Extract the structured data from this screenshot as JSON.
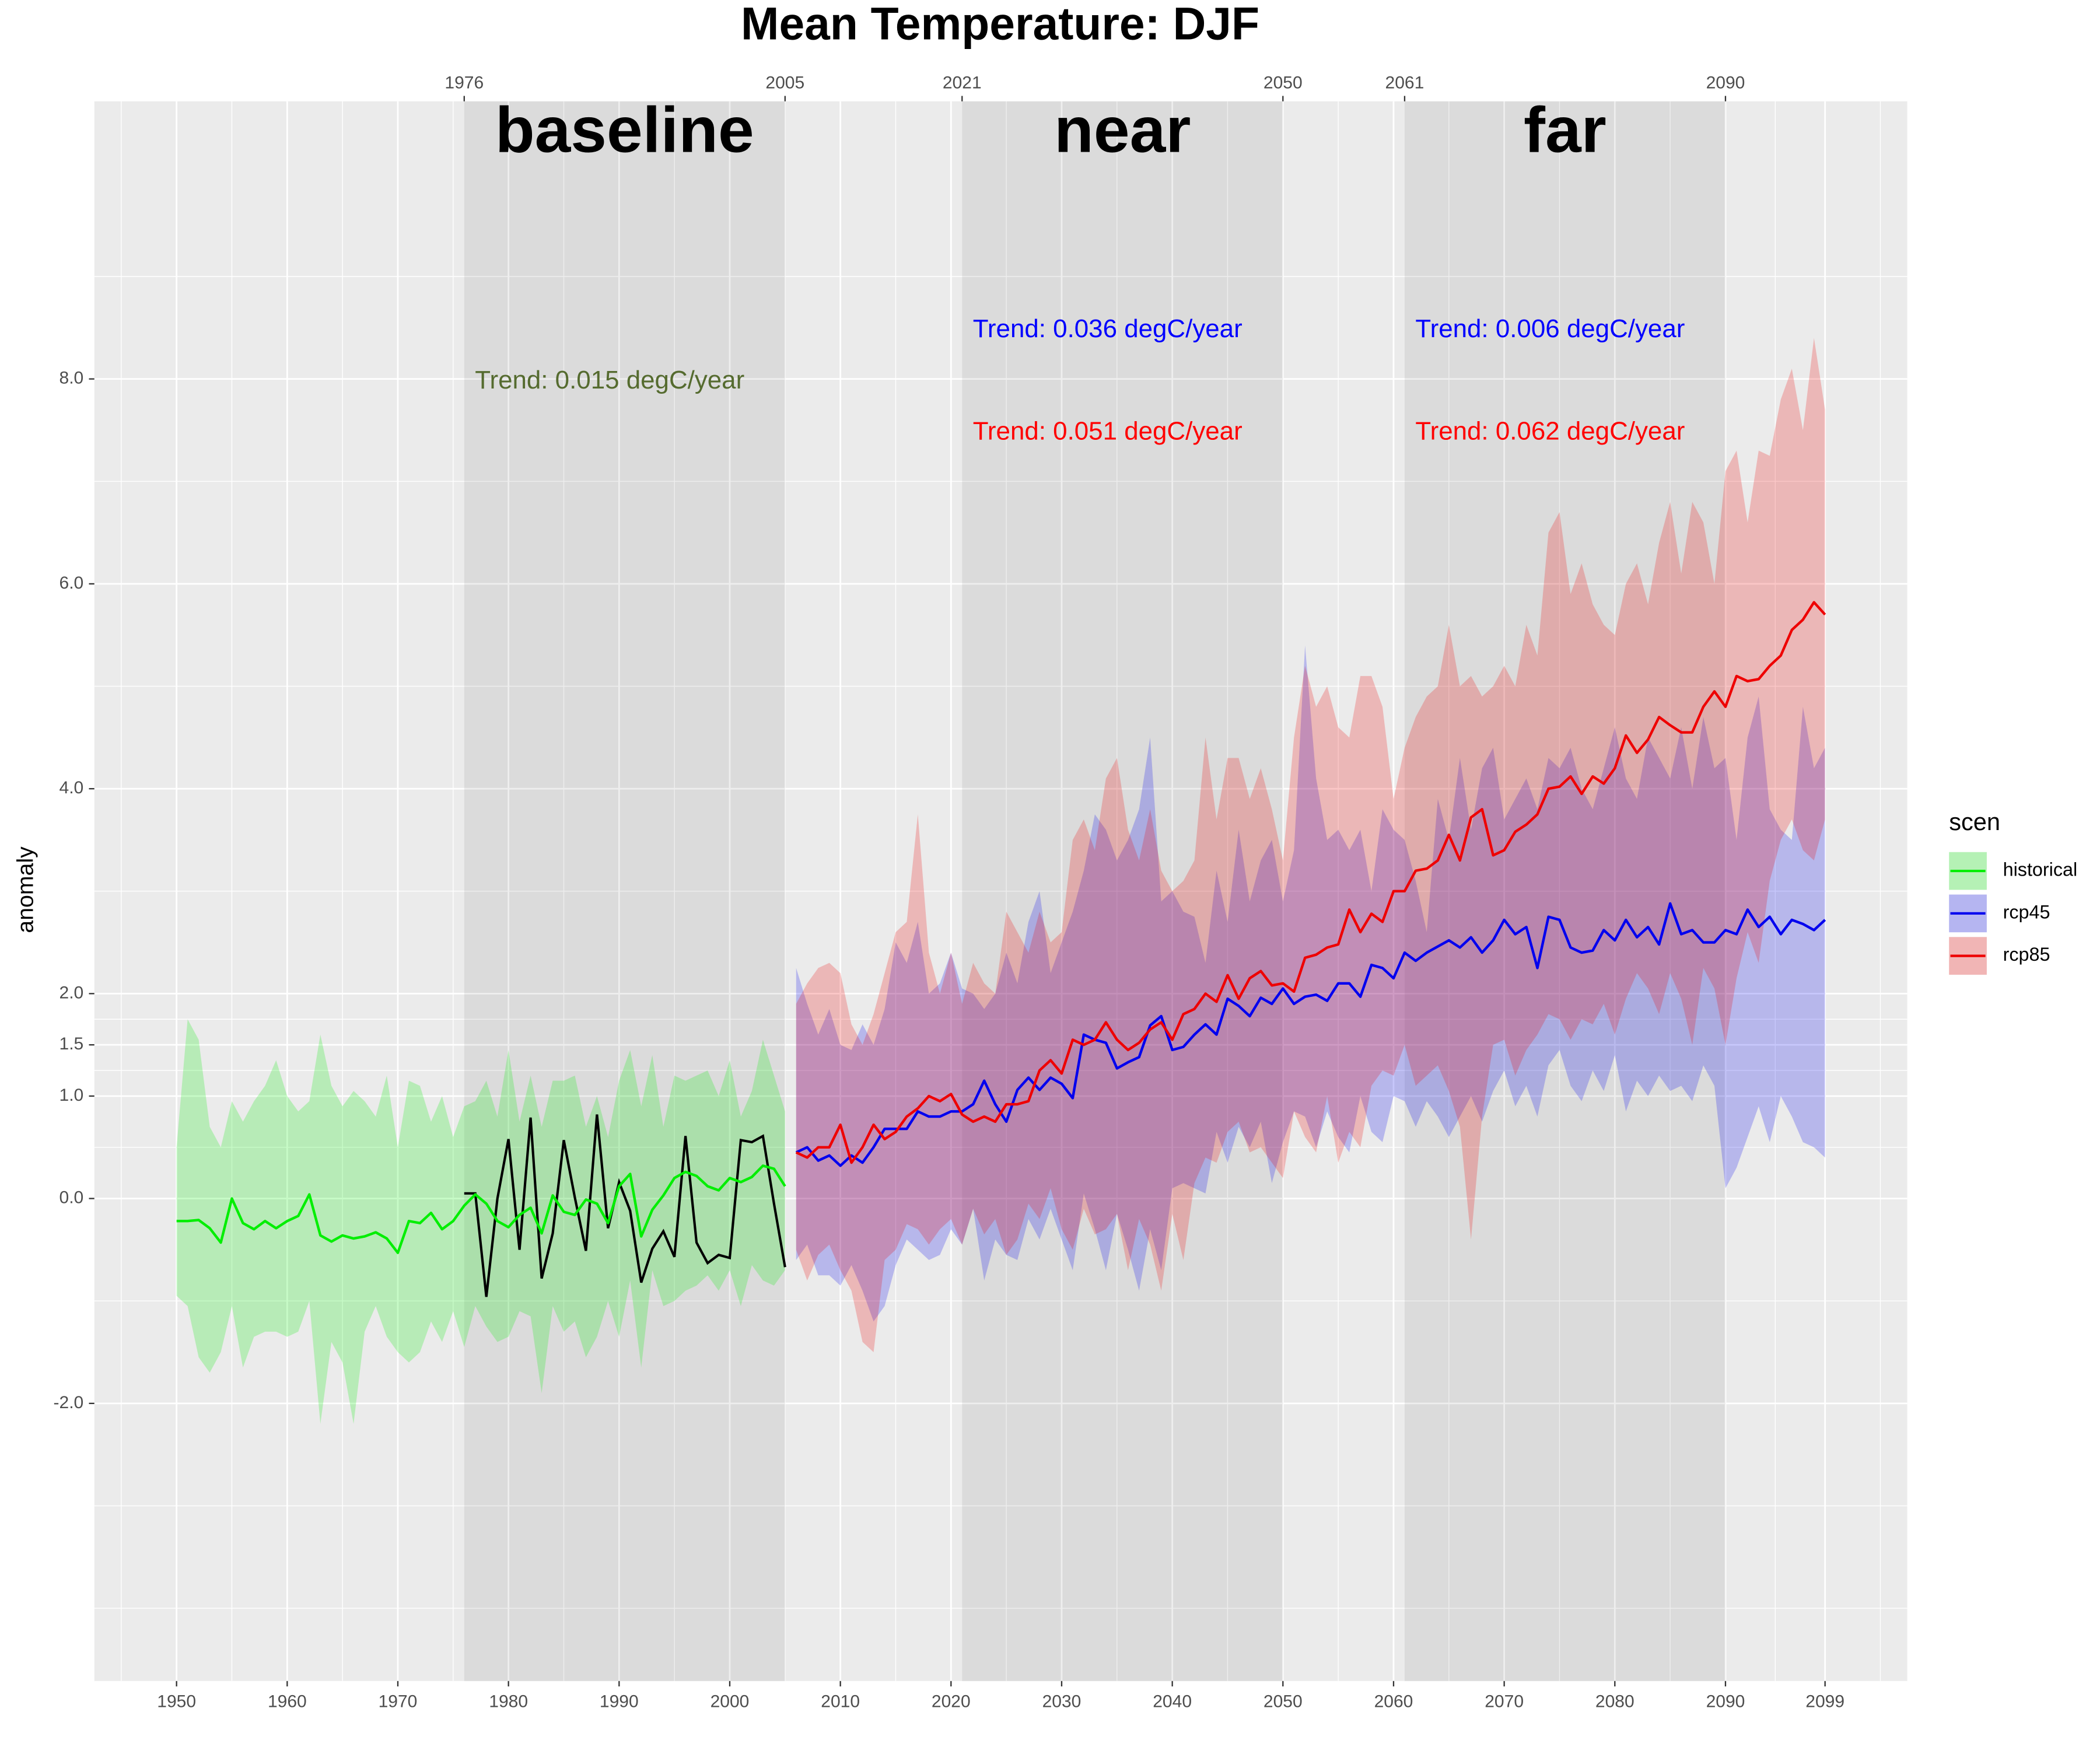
{
  "chart_data": {
    "type": "line",
    "title": "Mean Temperature: DJF",
    "ylabel": "anomaly",
    "legend_title": "scen",
    "legend": "right",
    "grid": true,
    "xlim": [
      1942.57,
      2106.43
    ],
    "ylim": [
      -4.71,
      10.71
    ],
    "xticks": [
      1950,
      1960,
      1970,
      1980,
      1990,
      2000,
      2010,
      2020,
      2030,
      2040,
      2050,
      2060,
      2070,
      2080,
      2090,
      2099
    ],
    "xminor": [
      1945,
      1955,
      1965,
      1975,
      1985,
      1995,
      2005,
      2015,
      2025,
      2035,
      2045,
      2055,
      2065,
      2075,
      2085,
      2094.5,
      2104
    ],
    "yticks": [
      {
        "value": -2,
        "label": "-2.0"
      },
      {
        "value": 0,
        "label": "0.0"
      },
      {
        "value": 1,
        "label": "1.0"
      },
      1.5,
      {
        "value": 2,
        "label": "2.0"
      },
      {
        "value": 4,
        "label": "4.0"
      },
      {
        "value": 6,
        "label": "6.0"
      },
      {
        "value": 8,
        "label": "8.0"
      }
    ],
    "yminor": [
      -4,
      -3,
      -1,
      0.5,
      1.25,
      1.75,
      3,
      5,
      7,
      9
    ],
    "series": [
      {
        "name": "historical",
        "color": "#00ee00",
        "x": [
          1950,
          1951,
          1952,
          1953,
          1954,
          1955,
          1956,
          1957,
          1958,
          1959,
          1960,
          1961,
          1962,
          1963,
          1964,
          1965,
          1966,
          1967,
          1968,
          1969,
          1970,
          1971,
          1972,
          1973,
          1974,
          1975,
          1976,
          1977,
          1978,
          1979,
          1980,
          1981,
          1982,
          1983,
          1984,
          1985,
          1986,
          1987,
          1988,
          1989,
          1990,
          1991,
          1992,
          1993,
          1994,
          1995,
          1996,
          1997,
          1998,
          1999,
          2000,
          2001,
          2002,
          2003,
          2004,
          2005
        ],
        "values": [
          -0.22,
          -0.22,
          -0.21,
          -0.29,
          -0.43,
          0.0,
          -0.24,
          -0.3,
          -0.22,
          -0.29,
          -0.22,
          -0.17,
          0.04,
          -0.36,
          -0.42,
          -0.36,
          -0.39,
          -0.37,
          -0.33,
          -0.39,
          -0.53,
          -0.22,
          -0.24,
          -0.14,
          -0.3,
          -0.22,
          -0.07,
          0.04,
          -0.05,
          -0.22,
          -0.28,
          -0.16,
          -0.09,
          -0.34,
          0.03,
          -0.13,
          -0.16,
          -0.01,
          -0.05,
          -0.24,
          0.12,
          0.24,
          -0.37,
          -0.11,
          0.03,
          0.2,
          0.26,
          0.22,
          0.12,
          0.08,
          0.2,
          0.16,
          0.21,
          0.32,
          0.29,
          0.12
        ],
        "upper": [
          0.5,
          1.75,
          1.55,
          0.7,
          0.5,
          0.95,
          0.75,
          0.95,
          1.1,
          1.35,
          1.0,
          0.85,
          0.95,
          1.6,
          1.1,
          0.9,
          1.05,
          0.95,
          0.8,
          1.2,
          0.5,
          1.15,
          1.1,
          0.75,
          1.0,
          0.6,
          0.9,
          0.95,
          1.15,
          0.8,
          1.45,
          0.75,
          1.2,
          0.7,
          1.15,
          1.15,
          1.2,
          0.7,
          1.0,
          0.6,
          1.15,
          1.45,
          0.9,
          1.4,
          0.7,
          1.2,
          1.15,
          1.2,
          1.25,
          1.0,
          1.35,
          0.8,
          1.05,
          1.55,
          1.2,
          0.85
        ],
        "lower": [
          -0.95,
          -1.05,
          -1.55,
          -1.7,
          -1.5,
          -1.05,
          -1.65,
          -1.35,
          -1.3,
          -1.3,
          -1.35,
          -1.3,
          -1.0,
          -2.2,
          -1.4,
          -1.6,
          -2.2,
          -1.3,
          -1.05,
          -1.35,
          -1.5,
          -1.6,
          -1.5,
          -1.2,
          -1.4,
          -1.1,
          -1.45,
          -1.05,
          -1.25,
          -1.4,
          -1.35,
          -1.1,
          -1.15,
          -1.9,
          -1.05,
          -1.3,
          -1.2,
          -1.55,
          -1.35,
          -1.0,
          -1.35,
          -0.8,
          -1.65,
          -0.7,
          -1.05,
          -1.0,
          -0.9,
          -0.85,
          -0.75,
          -0.9,
          -0.7,
          -1.05,
          -0.65,
          -0.8,
          -0.85,
          -0.7
        ]
      },
      {
        "name": "rcp45",
        "color": "#0000ee",
        "x": [
          2006,
          2007,
          2008,
          2009,
          2010,
          2011,
          2012,
          2013,
          2014,
          2015,
          2016,
          2017,
          2018,
          2019,
          2020,
          2021,
          2022,
          2023,
          2024,
          2025,
          2026,
          2027,
          2028,
          2029,
          2030,
          2031,
          2032,
          2033,
          2034,
          2035,
          2036,
          2037,
          2038,
          2039,
          2040,
          2041,
          2042,
          2043,
          2044,
          2045,
          2046,
          2047,
          2048,
          2049,
          2050,
          2051,
          2052,
          2053,
          2054,
          2055,
          2056,
          2057,
          2058,
          2059,
          2060,
          2061,
          2062,
          2063,
          2064,
          2065,
          2066,
          2067,
          2068,
          2069,
          2070,
          2071,
          2072,
          2073,
          2074,
          2075,
          2076,
          2077,
          2078,
          2079,
          2080,
          2081,
          2082,
          2083,
          2084,
          2085,
          2086,
          2087,
          2088,
          2089,
          2090,
          2091,
          2092,
          2093,
          2094,
          2095,
          2096,
          2097,
          2098,
          2099
        ],
        "values": [
          0.45,
          0.5,
          0.37,
          0.42,
          0.32,
          0.42,
          0.35,
          0.5,
          0.68,
          0.68,
          0.68,
          0.85,
          0.8,
          0.8,
          0.85,
          0.85,
          0.92,
          1.15,
          0.92,
          0.75,
          1.06,
          1.18,
          1.06,
          1.18,
          1.12,
          0.98,
          1.6,
          1.55,
          1.52,
          1.27,
          1.33,
          1.38,
          1.69,
          1.78,
          1.45,
          1.48,
          1.6,
          1.7,
          1.6,
          1.95,
          1.88,
          1.78,
          1.96,
          1.9,
          2.05,
          1.9,
          1.97,
          1.99,
          1.93,
          2.1,
          2.1,
          1.97,
          2.28,
          2.25,
          2.15,
          2.4,
          2.32,
          2.4,
          2.46,
          2.52,
          2.45,
          2.55,
          2.4,
          2.52,
          2.72,
          2.58,
          2.65,
          2.25,
          2.75,
          2.72,
          2.45,
          2.4,
          2.42,
          2.62,
          2.52,
          2.72,
          2.55,
          2.65,
          2.48,
          2.88,
          2.58,
          2.62,
          2.5,
          2.5,
          2.62,
          2.58,
          2.82,
          2.65,
          2.75,
          2.58,
          2.72,
          2.68,
          2.62,
          2.72
        ],
        "upper": [
          2.25,
          1.9,
          1.6,
          1.85,
          1.5,
          1.45,
          1.7,
          1.5,
          1.85,
          2.5,
          2.3,
          2.7,
          2.0,
          2.1,
          2.4,
          2.05,
          2.0,
          1.85,
          2.0,
          2.4,
          2.1,
          2.7,
          3.0,
          2.2,
          2.5,
          2.8,
          3.2,
          3.75,
          3.6,
          3.3,
          3.5,
          3.8,
          4.5,
          2.9,
          3.0,
          2.8,
          2.75,
          2.3,
          3.2,
          2.7,
          3.6,
          2.9,
          3.3,
          3.5,
          2.9,
          3.4,
          5.4,
          4.1,
          3.5,
          3.6,
          3.4,
          3.6,
          3.0,
          3.8,
          3.6,
          3.5,
          3.1,
          2.6,
          3.9,
          3.5,
          4.3,
          3.6,
          4.2,
          4.4,
          3.7,
          3.9,
          4.1,
          3.8,
          4.3,
          4.2,
          4.4,
          4.0,
          3.8,
          4.2,
          4.6,
          4.1,
          3.9,
          4.5,
          4.3,
          4.1,
          4.6,
          4.0,
          4.7,
          4.2,
          4.3,
          3.5,
          4.5,
          4.9,
          3.8,
          3.6,
          3.5,
          4.8,
          4.2,
          4.4
        ],
        "lower": [
          -0.6,
          -0.45,
          -0.75,
          -0.75,
          -0.85,
          -0.65,
          -0.9,
          -1.2,
          -1.05,
          -0.65,
          -0.4,
          -0.5,
          -0.6,
          -0.55,
          -0.3,
          -0.45,
          -0.1,
          -0.8,
          -0.4,
          -0.55,
          -0.6,
          -0.2,
          -0.4,
          -0.1,
          -0.4,
          -0.7,
          0.05,
          -0.3,
          -0.7,
          -0.15,
          -0.5,
          -0.9,
          -0.3,
          -0.7,
          0.1,
          0.15,
          0.1,
          0.05,
          0.65,
          0.35,
          0.7,
          0.5,
          0.75,
          0.15,
          0.55,
          0.85,
          0.8,
          0.5,
          0.85,
          0.6,
          0.45,
          1.0,
          0.65,
          0.55,
          1.0,
          0.95,
          0.7,
          0.95,
          0.8,
          0.6,
          0.8,
          1.0,
          0.75,
          1.05,
          1.25,
          0.9,
          1.1,
          0.8,
          1.3,
          1.45,
          1.1,
          0.95,
          1.25,
          1.05,
          1.4,
          0.85,
          1.15,
          1.0,
          1.2,
          1.05,
          1.1,
          0.95,
          1.3,
          1.1,
          0.1,
          0.3,
          0.6,
          0.9,
          0.55,
          1.0,
          0.8,
          0.55,
          0.5,
          0.4
        ]
      },
      {
        "name": "rcp85",
        "color": "#ee0000",
        "x": [
          2006,
          2007,
          2008,
          2009,
          2010,
          2011,
          2012,
          2013,
          2014,
          2015,
          2016,
          2017,
          2018,
          2019,
          2020,
          2021,
          2022,
          2023,
          2024,
          2025,
          2026,
          2027,
          2028,
          2029,
          2030,
          2031,
          2032,
          2033,
          2034,
          2035,
          2036,
          2037,
          2038,
          2039,
          2040,
          2041,
          2042,
          2043,
          2044,
          2045,
          2046,
          2047,
          2048,
          2049,
          2050,
          2051,
          2052,
          2053,
          2054,
          2055,
          2056,
          2057,
          2058,
          2059,
          2060,
          2061,
          2062,
          2063,
          2064,
          2065,
          2066,
          2067,
          2068,
          2069,
          2070,
          2071,
          2072,
          2073,
          2074,
          2075,
          2076,
          2077,
          2078,
          2079,
          2080,
          2081,
          2082,
          2083,
          2084,
          2085,
          2086,
          2087,
          2088,
          2089,
          2090,
          2091,
          2092,
          2093,
          2094,
          2095,
          2096,
          2097,
          2098,
          2099
        ],
        "values": [
          0.45,
          0.4,
          0.5,
          0.5,
          0.72,
          0.35,
          0.5,
          0.72,
          0.58,
          0.65,
          0.8,
          0.88,
          1.0,
          0.95,
          1.02,
          0.82,
          0.75,
          0.8,
          0.75,
          0.92,
          0.92,
          0.95,
          1.25,
          1.35,
          1.22,
          1.55,
          1.5,
          1.55,
          1.72,
          1.55,
          1.45,
          1.52,
          1.65,
          1.72,
          1.55,
          1.8,
          1.85,
          2.0,
          1.92,
          2.18,
          1.95,
          2.15,
          2.22,
          2.08,
          2.1,
          2.02,
          2.35,
          2.38,
          2.45,
          2.48,
          2.82,
          2.6,
          2.78,
          2.7,
          3.0,
          3.0,
          3.2,
          3.22,
          3.3,
          3.55,
          3.3,
          3.72,
          3.8,
          3.35,
          3.4,
          3.58,
          3.65,
          3.75,
          4.0,
          4.02,
          4.12,
          3.95,
          4.12,
          4.05,
          4.2,
          4.52,
          4.35,
          4.48,
          4.7,
          4.62,
          4.55,
          4.55,
          4.8,
          4.95,
          4.8,
          5.1,
          5.05,
          5.07,
          5.2,
          5.3,
          5.55,
          5.65,
          5.82,
          5.7
        ],
        "upper": [
          1.9,
          2.1,
          2.25,
          2.3,
          2.2,
          1.7,
          1.5,
          1.8,
          2.2,
          2.6,
          2.7,
          3.75,
          2.4,
          2.0,
          2.4,
          1.9,
          2.3,
          2.1,
          2.0,
          2.8,
          2.6,
          2.4,
          2.8,
          2.5,
          2.6,
          3.5,
          3.7,
          3.4,
          4.1,
          4.3,
          3.6,
          3.3,
          3.8,
          3.2,
          3.0,
          3.1,
          3.3,
          4.5,
          3.7,
          4.3,
          4.3,
          3.9,
          4.2,
          3.8,
          3.3,
          4.5,
          5.2,
          4.8,
          5.0,
          4.6,
          4.5,
          5.1,
          5.1,
          4.8,
          3.9,
          4.4,
          4.7,
          4.9,
          5.0,
          5.6,
          5.0,
          5.1,
          4.9,
          5.0,
          5.2,
          5.0,
          5.6,
          5.3,
          6.5,
          6.7,
          5.9,
          6.2,
          5.8,
          5.6,
          5.5,
          6.0,
          6.2,
          5.8,
          6.4,
          6.8,
          6.1,
          6.8,
          6.6,
          6.0,
          7.1,
          7.3,
          6.6,
          7.3,
          7.25,
          7.8,
          8.1,
          7.5,
          8.4,
          7.7
        ],
        "lower": [
          -0.5,
          -0.8,
          -0.55,
          -0.45,
          -0.7,
          -0.9,
          -1.4,
          -1.5,
          -0.6,
          -0.5,
          -0.25,
          -0.3,
          -0.45,
          -0.3,
          -0.2,
          -0.45,
          -0.1,
          -0.35,
          -0.2,
          -0.55,
          -0.4,
          -0.05,
          -0.2,
          0.1,
          -0.3,
          -0.5,
          -0.1,
          -0.35,
          -0.3,
          -0.15,
          -0.7,
          -0.2,
          -0.45,
          -0.9,
          -0.15,
          -0.6,
          0.15,
          0.4,
          0.35,
          0.65,
          0.75,
          0.45,
          0.5,
          0.35,
          0.2,
          0.85,
          0.6,
          0.45,
          1.0,
          0.35,
          0.65,
          0.5,
          1.1,
          1.25,
          1.2,
          1.5,
          1.1,
          1.2,
          1.3,
          1.05,
          0.7,
          -0.4,
          0.8,
          1.5,
          1.55,
          1.2,
          1.45,
          1.6,
          1.8,
          1.75,
          1.55,
          1.75,
          1.7,
          1.9,
          1.6,
          1.95,
          2.2,
          2.05,
          1.8,
          2.2,
          1.95,
          1.5,
          2.25,
          2.05,
          1.5,
          2.15,
          2.6,
          2.3,
          3.1,
          3.5,
          3.7,
          3.4,
          3.3,
          3.7
        ]
      }
    ],
    "reference": {
      "color": "#000000",
      "x": [
        1976,
        1977,
        1978,
        1979,
        1980,
        1981,
        1982,
        1983,
        1984,
        1985,
        1986,
        1987,
        1988,
        1989,
        1990,
        1991,
        1992,
        1993,
        1994,
        1995,
        1996,
        1997,
        1998,
        1999,
        2000,
        2001,
        2002,
        2003,
        2004,
        2005
      ],
      "values": [
        0.05,
        0.05,
        -0.96,
        0.0,
        0.58,
        -0.5,
        0.79,
        -0.78,
        -0.34,
        0.57,
        0.01,
        -0.51,
        0.82,
        -0.29,
        0.16,
        -0.12,
        -0.82,
        -0.49,
        -0.32,
        -0.57,
        0.61,
        -0.43,
        -0.63,
        -0.55,
        -0.58,
        0.57,
        0.55,
        0.61,
        -0.05,
        -0.67
      ]
    },
    "periods": [
      {
        "label": "baseline",
        "start": 1976,
        "end": 2005,
        "trends": [
          {
            "text": "Trend: 0.015 degC/year",
            "color": "#556b2f"
          }
        ]
      },
      {
        "label": "near",
        "start": 2021,
        "end": 2050,
        "trends": [
          {
            "text": "Trend: 0.036 degC/year",
            "color": "#0000ff"
          },
          {
            "text": "Trend: 0.051 degC/year",
            "color": "#ff0000"
          }
        ]
      },
      {
        "label": "far",
        "start": 2061,
        "end": 2090,
        "trends": [
          {
            "text": "Trend: 0.006 degC/year",
            "color": "#0000ff"
          },
          {
            "text": "Trend: 0.062 degC/year",
            "color": "#ff0000"
          }
        ]
      }
    ]
  }
}
